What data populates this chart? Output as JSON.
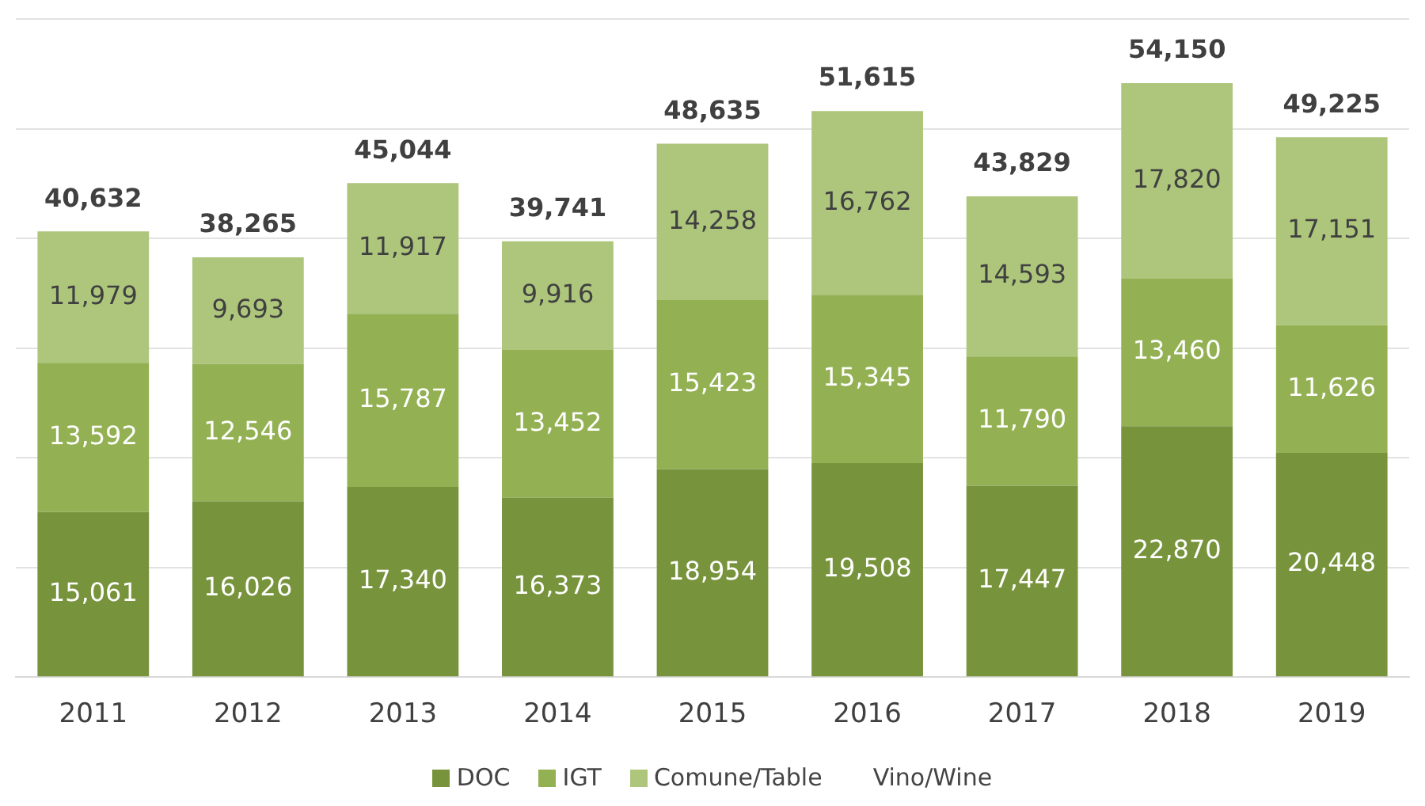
{
  "chart_data": {
    "type": "bar",
    "stacked": true,
    "categories": [
      "2011",
      "2012",
      "2013",
      "2014",
      "2015",
      "2016",
      "2017",
      "2018",
      "2019"
    ],
    "series": [
      {
        "name": "DOC",
        "color": "#77933c",
        "values": [
          15061,
          16026,
          17340,
          16373,
          18954,
          19508,
          17447,
          22870,
          20448
        ],
        "value_labels": [
          "15,061",
          "16,026",
          "17,340",
          "16,373",
          "18,954",
          "19,508",
          "17,447",
          "22,870",
          "20,448"
        ]
      },
      {
        "name": "IGT",
        "color": "#93b153",
        "values": [
          13592,
          12546,
          15787,
          13452,
          15423,
          15345,
          11790,
          13460,
          11626
        ],
        "value_labels": [
          "13,592",
          "12,546",
          "15,787",
          "13,452",
          "15,423",
          "15,345",
          "11,790",
          "13,460",
          "11,626"
        ]
      },
      {
        "name": "Comune/Table",
        "color": "#adc67c",
        "values": [
          11979,
          9693,
          11917,
          9916,
          14258,
          16762,
          14593,
          17820,
          17151
        ],
        "value_labels": [
          "11,979",
          "9,693",
          "11,917",
          "9,916",
          "14,258",
          "16,762",
          "14,593",
          "17,820",
          "17,151"
        ]
      }
    ],
    "totals": [
      "40,632",
      "38,265",
      "45,044",
      "39,741",
      "48,635",
      "51,615",
      "43,829",
      "54,150",
      "49,225"
    ],
    "annotations": [
      "Vino/Wine"
    ],
    "tick_labels": "x",
    "grid": "y",
    "legend": "bottom"
  }
}
